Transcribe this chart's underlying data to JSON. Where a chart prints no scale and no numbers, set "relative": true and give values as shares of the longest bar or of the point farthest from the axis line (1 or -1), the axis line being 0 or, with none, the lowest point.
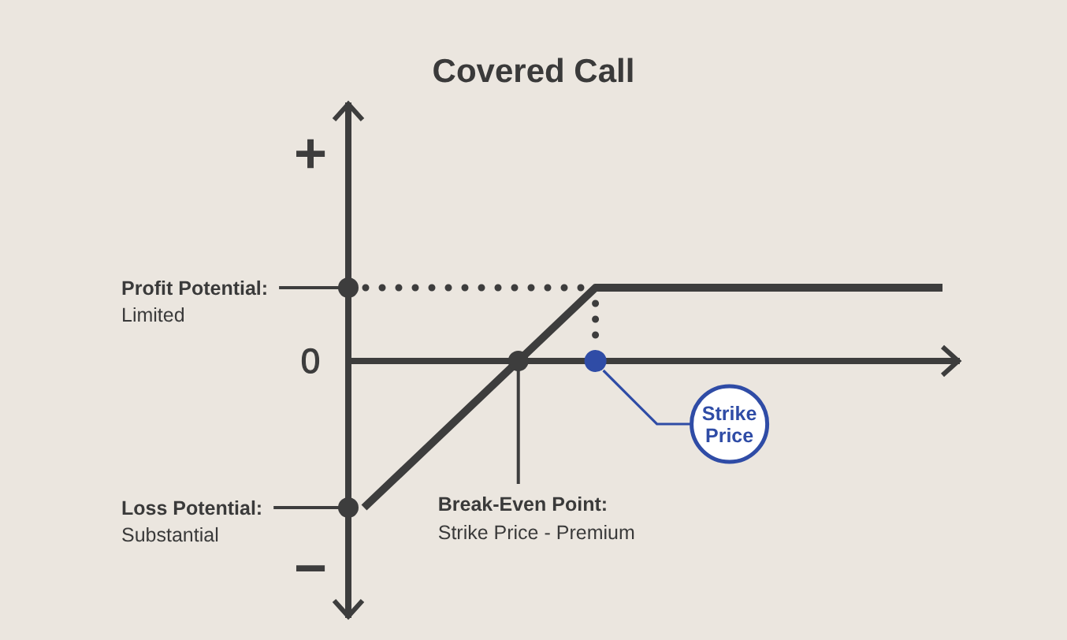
{
  "chart_data": {
    "type": "line",
    "title": "Covered Call",
    "relative": true,
    "categories": [
      null,
      null,
      null,
      null,
      null,
      null
    ],
    "series": [
      {
        "color": "#3d3d3d",
        "values": [
          -1,
          -0.25,
          0.5,
          0.5,
          0.5,
          0.5
        ]
      }
    ],
    "annotations": [
      "+",
      "−",
      "0",
      "Profit Potential:\nLimited",
      "Loss Potential:\nSubstantial",
      "Break-Even Point:\nStrike Price - Premium",
      "Strike Price"
    ]
  }
}
